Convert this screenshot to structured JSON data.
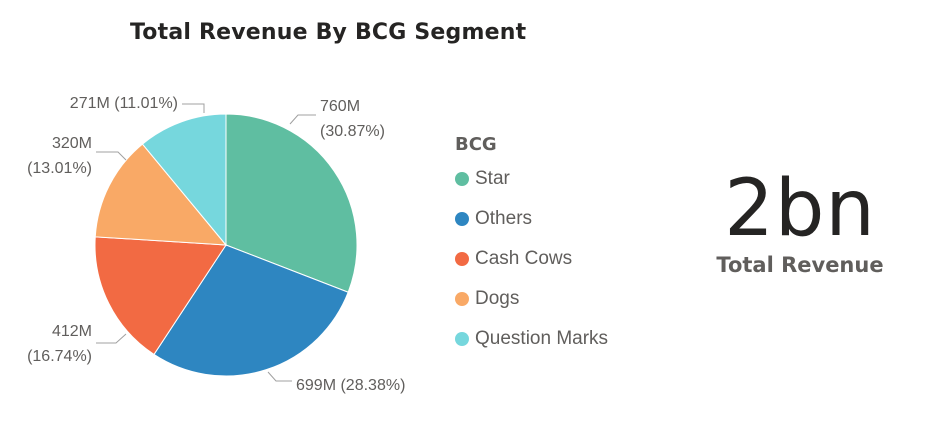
{
  "chart_data": {
    "type": "pie",
    "title": "Total Revenue By BCG Segment",
    "legend_title": "BCG",
    "legend_position": "right",
    "slices": [
      {
        "name": "Star",
        "value": 760,
        "value_label": "760M",
        "percent_label": "(30.87%)",
        "color": "#5fbea1"
      },
      {
        "name": "Others",
        "value": 699,
        "value_label": "699M",
        "percent_label": "(28.38%)",
        "color": "#2e86c1"
      },
      {
        "name": "Cash Cows",
        "value": 412,
        "value_label": "412M",
        "percent_label": "(16.74%)",
        "color": "#f26a43"
      },
      {
        "name": "Dogs",
        "value": 320,
        "value_label": "320M",
        "percent_label": "(13.01%)",
        "color": "#f9a966"
      },
      {
        "name": "Question Marks",
        "value": 271,
        "value_label": "271M",
        "percent_label": "(11.01%)",
        "color": "#76d7dd"
      }
    ]
  },
  "card": {
    "value": "2bn",
    "label": "Total Revenue"
  }
}
